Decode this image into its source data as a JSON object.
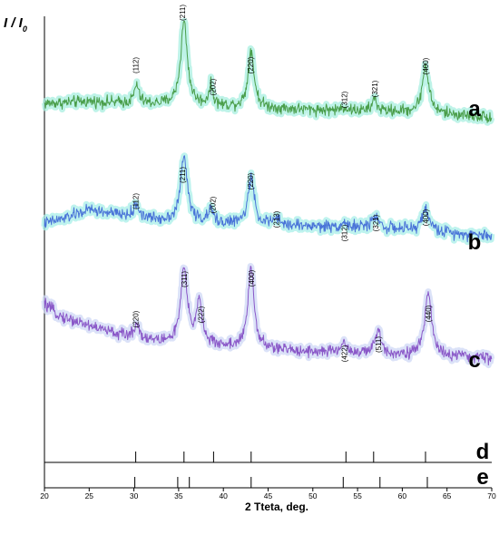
{
  "chart_data": {
    "type": "line",
    "ylabel_main": "I / I",
    "ylabel_sub": "0",
    "xlabel": "2 Tteta, deg.",
    "xlim": [
      20,
      70
    ],
    "xticks": [
      20,
      25,
      30,
      35,
      40,
      45,
      50,
      55,
      60,
      65,
      70
    ],
    "series": [
      {
        "name": "a",
        "color": "#4a9e4a",
        "glow": "#a8efe0",
        "baseline": [
          [
            20,
            12
          ],
          [
            25,
            14
          ],
          [
            30,
            12
          ],
          [
            40,
            9
          ],
          [
            50,
            6
          ],
          [
            60,
            4
          ],
          [
            70,
            -1
          ]
        ],
        "peaks": [
          [
            30.3,
            18,
            0.3
          ],
          [
            35.6,
            80,
            0.45
          ],
          [
            38.6,
            18,
            0.3
          ],
          [
            43.1,
            55,
            0.4
          ],
          [
            53.5,
            3,
            0.4
          ],
          [
            56.9,
            12,
            0.3
          ],
          [
            62.6,
            45,
            0.45
          ]
        ],
        "peak_labels": [
          {
            "label": "(112)",
            "x": 30.2
          },
          {
            "label": "(211)",
            "x": 35.4
          },
          {
            "label": "(202)",
            "x": 38.8
          },
          {
            "label": "(220)",
            "x": 43.0
          },
          {
            "label": "(312)",
            "x": 53.5
          },
          {
            "label": "(321)",
            "x": 56.9
          },
          {
            "label": "(400)",
            "x": 62.6
          }
        ]
      },
      {
        "name": "b",
        "color": "#4a74d8",
        "glow": "#a8efe8",
        "baseline": [
          [
            20,
            12
          ],
          [
            22,
            16
          ],
          [
            25,
            25
          ],
          [
            27,
            22
          ],
          [
            30,
            18
          ],
          [
            33,
            15
          ],
          [
            40,
            12
          ],
          [
            45,
            11
          ],
          [
            50,
            9
          ],
          [
            55,
            8
          ],
          [
            60,
            6
          ],
          [
            65,
            3
          ],
          [
            70,
            0
          ]
        ],
        "peaks": [
          [
            30.3,
            12,
            0.35
          ],
          [
            35.6,
            62,
            0.45
          ],
          [
            38.6,
            12,
            0.3
          ],
          [
            43.1,
            44,
            0.4
          ],
          [
            45.9,
            5,
            0.4
          ],
          [
            53.5,
            4,
            0.4
          ],
          [
            57.0,
            12,
            0.45
          ],
          [
            62.6,
            22,
            0.45
          ]
        ],
        "peak_labels": [
          {
            "label": "(112)",
            "x": 30.2
          },
          {
            "label": "(211)",
            "x": 35.4
          },
          {
            "label": "(202)",
            "x": 38.8
          },
          {
            "label": "(220)",
            "x": 43.0
          },
          {
            "label": "(213)",
            "x": 45.9
          },
          {
            "label": "(312)",
            "x": 53.5
          },
          {
            "label": "(321)",
            "x": 57.0
          },
          {
            "label": "(400)",
            "x": 62.6
          }
        ]
      },
      {
        "name": "c",
        "color": "#8a58c8",
        "glow": "#cfd8f5",
        "baseline": [
          [
            20,
            60
          ],
          [
            22,
            48
          ],
          [
            25,
            40
          ],
          [
            28,
            32
          ],
          [
            30,
            28
          ],
          [
            33,
            24
          ],
          [
            40,
            20
          ],
          [
            45,
            17
          ],
          [
            50,
            15
          ],
          [
            55,
            13
          ],
          [
            60,
            12
          ],
          [
            65,
            10
          ],
          [
            70,
            9
          ]
        ],
        "peaks": [
          [
            30.3,
            14,
            0.35
          ],
          [
            35.6,
            70,
            0.45
          ],
          [
            37.3,
            43,
            0.35
          ],
          [
            43.1,
            78,
            0.4
          ],
          [
            53.5,
            10,
            0.4
          ],
          [
            57.3,
            22,
            0.4
          ],
          [
            62.9,
            62,
            0.45
          ]
        ],
        "peak_labels": [
          {
            "label": "(220)",
            "x": 30.2
          },
          {
            "label": "(311)",
            "x": 35.6
          },
          {
            "label": "(222)",
            "x": 37.5
          },
          {
            "label": "(400)",
            "x": 43.1
          },
          {
            "label": "(422)",
            "x": 53.5
          },
          {
            "label": "(511)",
            "x": 57.3
          },
          {
            "label": "(440)",
            "x": 62.9
          }
        ]
      }
    ],
    "reference_patterns": [
      {
        "name": "d",
        "positions": [
          30.2,
          35.6,
          38.9,
          43.1,
          53.7,
          56.8,
          62.6
        ]
      },
      {
        "name": "e",
        "positions": [
          30.1,
          34.9,
          36.2,
          43.1,
          53.4,
          57.5,
          62.8
        ]
      }
    ]
  }
}
